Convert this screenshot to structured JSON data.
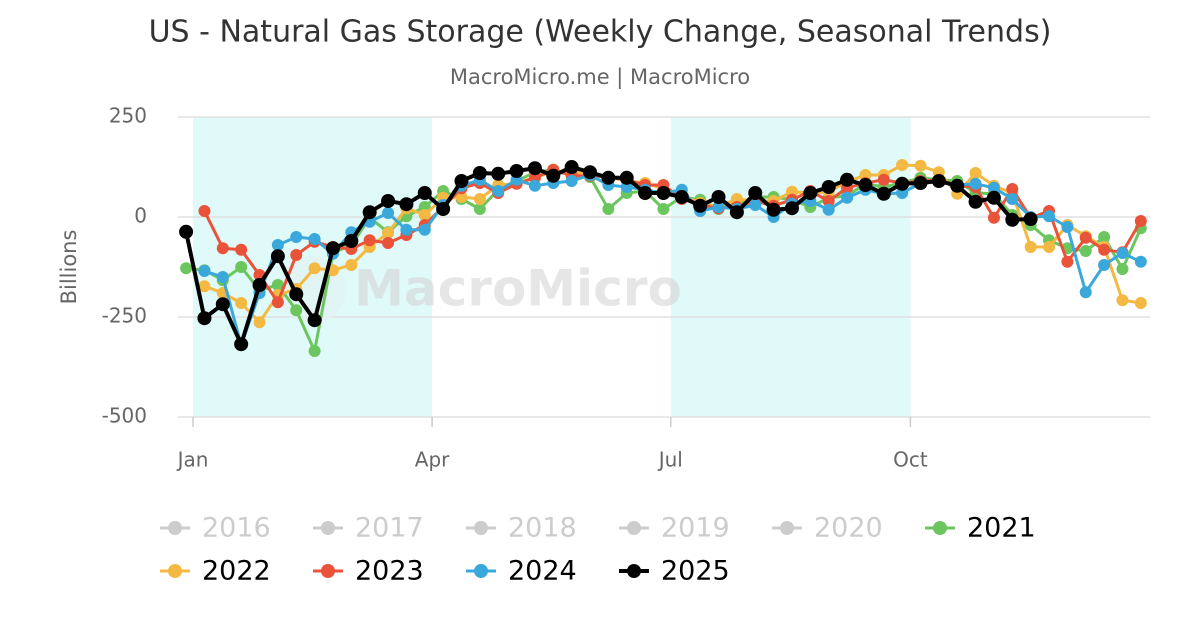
{
  "chart_data": {
    "type": "line",
    "title": "US - Natural Gas Storage (Weekly Change, Seasonal Trends)",
    "subtitle": "MacroMicro.me | MacroMicro",
    "y_label": "Billions",
    "watermark": "MacroMicro",
    "x": [
      0,
      1,
      2,
      3,
      4,
      5,
      6,
      7,
      8,
      9,
      10,
      11,
      12,
      13,
      14,
      15,
      16,
      17,
      18,
      19,
      20,
      21,
      22,
      23,
      24,
      25,
      26,
      27,
      28,
      29,
      30,
      31,
      32,
      33,
      34,
      35,
      36,
      37,
      38,
      39,
      40,
      41,
      42,
      43,
      44,
      45,
      46,
      47,
      48,
      49,
      50,
      51,
      52
    ],
    "xlim": [
      -0.44,
      52.5
    ],
    "xticks": [
      {
        "value": 0.38,
        "label": "Jan"
      },
      {
        "value": 13.4,
        "label": "Apr"
      },
      {
        "value": 26.4,
        "label": "Jul"
      },
      {
        "value": 39.45,
        "label": "Oct"
      }
    ],
    "ylim": [
      -500,
      250
    ],
    "yticks": [
      -500,
      -250,
      0,
      250
    ],
    "grid": true,
    "plot_bands": [
      {
        "from": 0.38,
        "to": 13.4,
        "color": "#e0f9f9"
      },
      {
        "from": 26.4,
        "to": 39.45,
        "color": "#e0f9f9"
      }
    ],
    "series": [
      {
        "name": "2016",
        "color": "#cccccc",
        "visible": false
      },
      {
        "name": "2017",
        "color": "#cccccc",
        "visible": false
      },
      {
        "name": "2018",
        "color": "#cccccc",
        "visible": false
      },
      {
        "name": "2019",
        "color": "#cccccc",
        "visible": false
      },
      {
        "name": "2020",
        "color": "#cccccc",
        "visible": false
      },
      {
        "name": "2021",
        "color": "#6cc65e",
        "visible": true,
        "line_width": 3,
        "values": [
          -128,
          -133,
          -158,
          -125,
          -183,
          -170,
          -233,
          -335,
          -90,
          -70,
          -2,
          -38,
          2,
          25,
          65,
          45,
          20,
          68,
          90,
          112,
          118,
          105,
          100,
          20,
          60,
          65,
          20,
          50,
          43,
          20,
          33,
          50,
          50,
          43,
          25,
          48,
          53,
          83,
          75,
          85,
          98,
          93,
          90,
          60,
          58,
          5,
          -20,
          -58,
          -78,
          -85,
          -50,
          -130,
          -28
        ]
      },
      {
        "name": "2022",
        "color": "#f4b942",
        "visible": true,
        "line_width": 3,
        "values": [
          null,
          -173,
          -190,
          -215,
          -263,
          -195,
          -180,
          -128,
          -133,
          -120,
          -75,
          -40,
          22,
          5,
          48,
          50,
          45,
          80,
          83,
          100,
          112,
          112,
          110,
          100,
          90,
          85,
          70,
          53,
          35,
          25,
          45,
          40,
          40,
          63,
          60,
          63,
          88,
          105,
          105,
          130,
          128,
          112,
          58,
          110,
          78,
          60,
          -75,
          -75,
          -20,
          -48,
          -75,
          -208,
          -215
        ]
      },
      {
        "name": "2023",
        "color": "#e8533a",
        "visible": true,
        "line_width": 3,
        "values": [
          null,
          15,
          -78,
          -82,
          -145,
          -213,
          -95,
          -62,
          -75,
          -80,
          -58,
          -65,
          -45,
          -20,
          25,
          72,
          85,
          60,
          83,
          98,
          118,
          103,
          103,
          100,
          93,
          80,
          80,
          45,
          30,
          22,
          25,
          40,
          28,
          43,
          65,
          40,
          73,
          85,
          93,
          85,
          90,
          93,
          78,
          75,
          -2,
          70,
          -2,
          15,
          -112,
          -52,
          -82,
          -88,
          -10
        ]
      },
      {
        "name": "2024",
        "color": "#3ba8dc",
        "visible": true,
        "line_width": 3,
        "values": [
          null,
          -135,
          -150,
          -320,
          -190,
          -70,
          -50,
          -55,
          -92,
          -38,
          -12,
          10,
          -32,
          -32,
          30,
          78,
          93,
          65,
          93,
          78,
          85,
          90,
          105,
          80,
          75,
          68,
          60,
          68,
          15,
          25,
          20,
          30,
          0,
          33,
          40,
          18,
          48,
          68,
          58,
          60,
          85,
          88,
          80,
          83,
          73,
          45,
          0,
          2,
          -25,
          -188,
          -120,
          -90,
          -112
        ]
      },
      {
        "name": "2025",
        "color": "#000000",
        "visible": true,
        "line_width": 4,
        "values": [
          -37,
          -253,
          -218,
          -318,
          -170,
          -98,
          -193,
          -258,
          -78,
          -60,
          12,
          40,
          32,
          60,
          20,
          90,
          110,
          108,
          115,
          122,
          103,
          125,
          112,
          98,
          98,
          60,
          60,
          50,
          28,
          50,
          12,
          60,
          18,
          22,
          60,
          75,
          93,
          80,
          58,
          83,
          85,
          90,
          78,
          38,
          48,
          -7,
          -5,
          null,
          null,
          null,
          null,
          null,
          null
        ]
      }
    ]
  }
}
